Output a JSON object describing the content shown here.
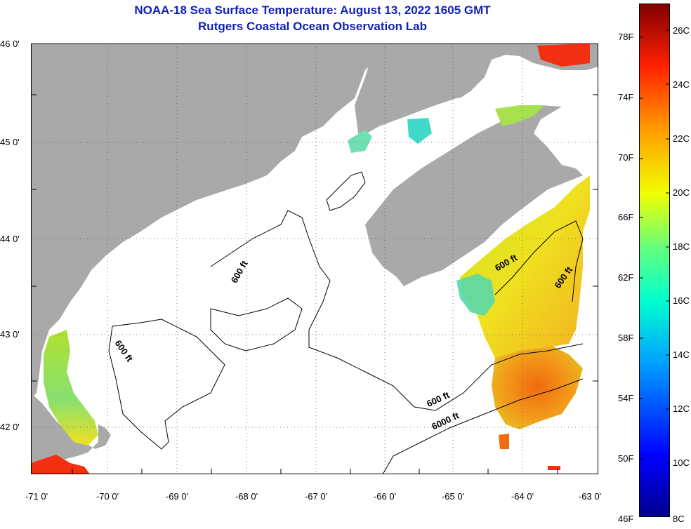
{
  "title": {
    "line1": "NOAA-18 Sea Surface Temperature:  August 13, 2022 1605 GMT",
    "line2": "Rutgers Coastal Ocean Observation Lab"
  },
  "axes": {
    "lat_labels": [
      "46 0'",
      "45 0'",
      "44 0'",
      "43 0'",
      "42 0'"
    ],
    "lon_labels": [
      "-71 0'",
      "-70 0'",
      "-69 0'",
      "-68 0'",
      "-67 0'",
      "-66 0'",
      "-65 0'",
      "-64 0'",
      "-63 0'"
    ],
    "lat_range": [
      41.5,
      46.0
    ],
    "lon_range": [
      -71.0,
      -63.0
    ]
  },
  "contours": {
    "shelf_label": "600 ft",
    "slope_label": "6000 ft"
  },
  "colorbar": {
    "fahrenheit_labels": [
      "78F",
      "74F",
      "70F",
      "66F",
      "62F",
      "58F",
      "54F",
      "50F",
      "46F"
    ],
    "celsius_labels": [
      "26C",
      "24C",
      "22C",
      "20C",
      "18C",
      "16C",
      "14C",
      "12C",
      "10C",
      "8C"
    ],
    "range_celsius": [
      8,
      27
    ]
  },
  "colors": {
    "land": "#a9a9a9",
    "ocean_no_data": "#ffffff",
    "title": "#1020b8",
    "grid": "#555555"
  }
}
